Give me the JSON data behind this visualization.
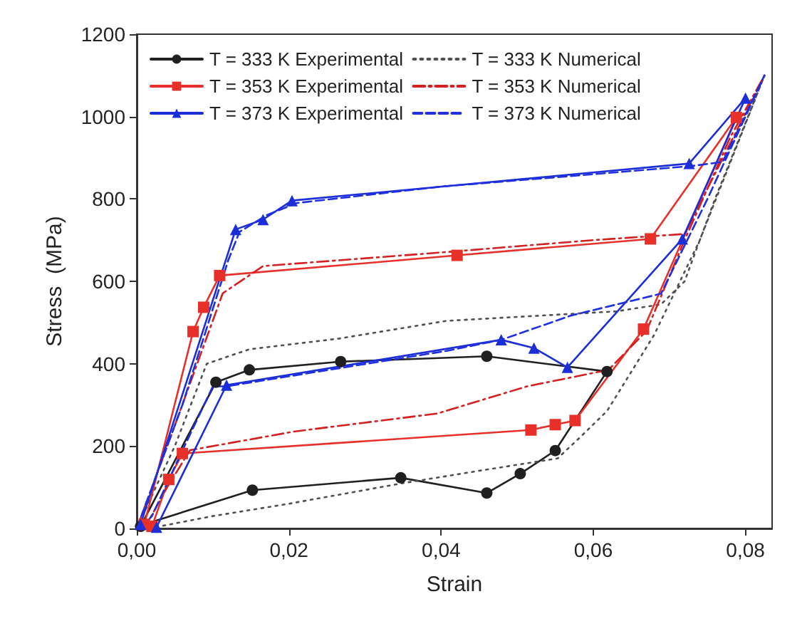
{
  "chart_data": {
    "type": "line",
    "xlabel": "Strain",
    "ylabel": "Stress  (MPa)",
    "xlim": [
      0,
      0.0835
    ],
    "ylim": [
      0,
      1200
    ],
    "xticks": [
      {
        "value": 0,
        "label": "0,00"
      },
      {
        "value": 0.02,
        "label": "0,02"
      },
      {
        "value": 0.04,
        "label": "0,04"
      },
      {
        "value": 0.06,
        "label": "0,06"
      },
      {
        "value": 0.08,
        "label": "0,08"
      }
    ],
    "yticks": [
      0,
      200,
      400,
      600,
      800,
      1000,
      1200
    ],
    "grid": false,
    "legend": "top",
    "series": [
      {
        "name": "T = 333 K Experimental",
        "color": "#202020",
        "marker": "circle",
        "line_style": "solid",
        "x": [
          0.0005,
          0.0104,
          0.0148,
          0.0268,
          0.046,
          0.0618,
          0.055,
          0.0504,
          0.046,
          0.0347,
          0.0152,
          0.001
        ],
        "values": [
          5,
          355,
          385,
          405,
          418,
          381,
          189,
          133,
          86,
          123,
          93,
          10
        ]
      },
      {
        "name": "T = 333 K Numerical",
        "color": "#505050",
        "marker": "none",
        "line_style": "dotted",
        "x": [
          0,
          0.005,
          0.0092,
          0.0148,
          0.0266,
          0.0407,
          0.063,
          0.0689,
          0.072,
          0.076,
          0.0825,
          0.074,
          0.068,
          0.0618,
          0.0583,
          0.0553,
          0.045,
          0.035,
          0.02,
          0.01,
          0.003
        ],
        "values": [
          0,
          200,
          400,
          435,
          461,
          504,
          527,
          544,
          600,
          800,
          1100,
          700,
          470,
          285,
          222,
          170,
          140,
          110,
          60,
          30,
          5
        ]
      },
      {
        "name": "T = 353 K Experimental",
        "color": "#e8302a",
        "marker": "square",
        "line_style": "solid",
        "x": [
          0.002,
          0.0042,
          0.006,
          0.0518,
          0.055,
          0.0576,
          0.0666,
          0.0788,
          0.0675,
          0.0421,
          0.0109,
          0.0088,
          0.0074,
          0.001
        ],
        "values": [
          5,
          119,
          182,
          239,
          252,
          262,
          484,
          998,
          703,
          663,
          614,
          537,
          478,
          10
        ]
      },
      {
        "name": "T = 353 K Numerical",
        "color": "#d42020",
        "marker": "none",
        "line_style": "dashdot",
        "x": [
          0,
          0.005,
          0.0113,
          0.0166,
          0.04,
          0.06,
          0.072,
          0.0825,
          0.078,
          0.072,
          0.067,
          0.062,
          0.0513,
          0.0395,
          0.0206,
          0.007,
          0.004,
          0.001
        ],
        "values": [
          0,
          250,
          571,
          637,
          670,
          700,
          715,
          1100,
          950,
          700,
          480,
          385,
          345,
          279,
          235,
          190,
          100,
          0
        ]
      },
      {
        "name": "T = 373 K Experimental",
        "color": "#1c2ed8",
        "marker": "triangle",
        "line_style": "solid",
        "x": [
          0.0005,
          0.013,
          0.0166,
          0.0204,
          0.0726,
          0.08,
          0.0717,
          0.0566,
          0.0522,
          0.0479,
          0.0118,
          0.0026
        ],
        "values": [
          10,
          726,
          750,
          796,
          886,
          1045,
          703,
          391,
          438,
          458,
          348,
          3
        ]
      },
      {
        "name": "T = 373 K Numerical",
        "color": "#2030e0",
        "marker": "none",
        "line_style": "dashed",
        "x": [
          0,
          0.006,
          0.012,
          0.0135,
          0.017,
          0.021,
          0.04,
          0.06,
          0.073,
          0.077,
          0.0825,
          0.08,
          0.075,
          0.0689,
          0.0571,
          0.0479,
          0.0407,
          0.0118,
          0.01,
          0.005,
          0.002,
          0.0005
        ],
        "values": [
          0,
          300,
          650,
          720,
          760,
          790,
          830,
          860,
          880,
          890,
          1100,
          1000,
          800,
          570,
          517,
          458,
          431,
          345,
          345,
          150,
          30,
          0
        ]
      }
    ]
  }
}
